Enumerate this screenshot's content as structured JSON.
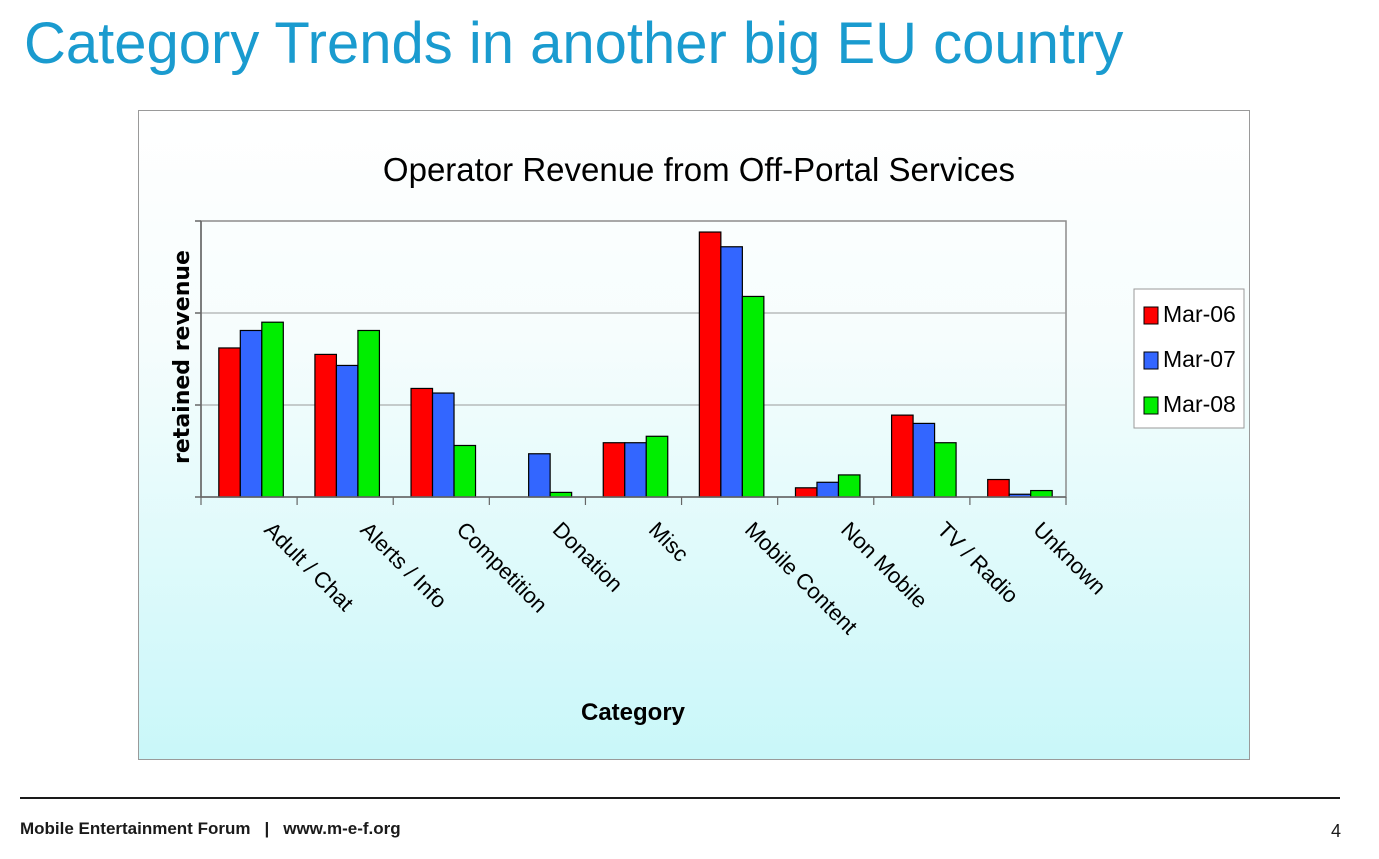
{
  "slide": {
    "title": "Category Trends in another big EU country"
  },
  "footer": {
    "organization": "Mobile Entertainment Forum",
    "separator": "|",
    "website": "www.m-e-f.org",
    "page_number": "4"
  },
  "chart_data": {
    "type": "bar",
    "title": "Operator Revenue from Off-Portal Services",
    "xlabel": "Category",
    "ylabel": "retained revenue",
    "ylim": [
      0,
      3
    ],
    "yticks": [
      0,
      1,
      2,
      3
    ],
    "ytick_labels_shown": false,
    "grid": true,
    "legend_position": "right",
    "categories": [
      "Adult / Chat",
      "Alerts / Info",
      "Competition",
      "Donation",
      "Misc",
      "Mobile Content",
      "Non Mobile",
      "TV / Radio",
      "Unknown"
    ],
    "series": [
      {
        "name": "Mar-06",
        "color": "#ff0000",
        "values": [
          1.62,
          1.55,
          1.18,
          0.0,
          0.59,
          2.88,
          0.1,
          0.89,
          0.19
        ]
      },
      {
        "name": "Mar-07",
        "color": "#3366ff",
        "values": [
          1.81,
          1.43,
          1.13,
          0.47,
          0.59,
          2.72,
          0.16,
          0.8,
          0.03
        ]
      },
      {
        "name": "Mar-08",
        "color": "#00ee00",
        "values": [
          1.9,
          1.81,
          0.56,
          0.05,
          0.66,
          2.18,
          0.24,
          0.59,
          0.07
        ]
      }
    ]
  }
}
